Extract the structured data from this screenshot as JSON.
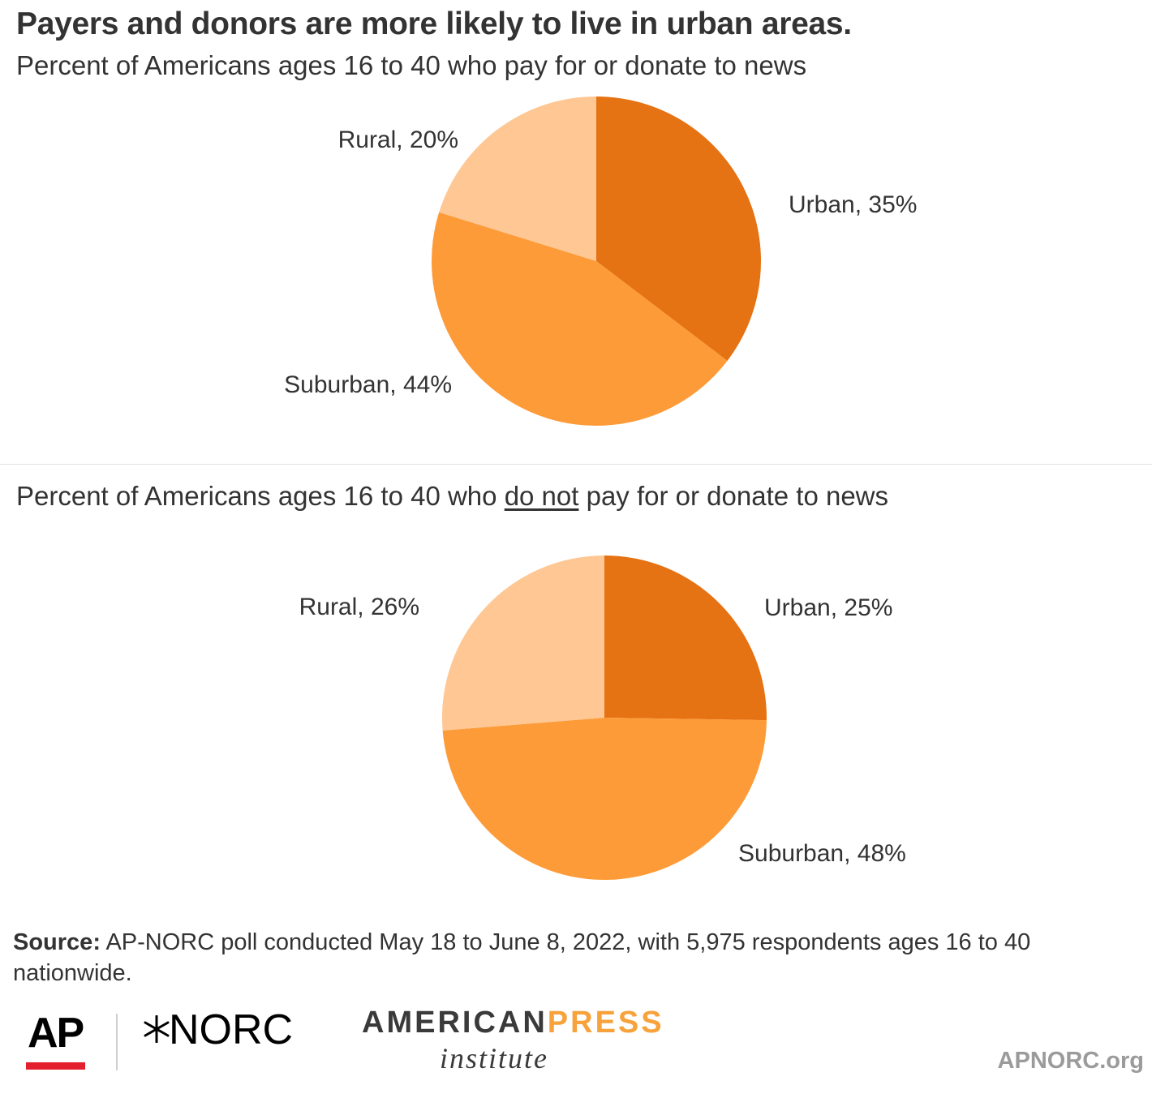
{
  "title": "Payers and donors are more likely to live in urban areas.",
  "chart_data": [
    {
      "type": "pie",
      "title": "Percent of Americans ages 16 to 40 who pay for or donate to news",
      "slices": [
        {
          "name": "Urban",
          "value": 35,
          "label": "Urban, 35%",
          "color": "#e57213"
        },
        {
          "name": "Suburban",
          "value": 44,
          "label": "Suburban, 44%",
          "color": "#fe9b39"
        },
        {
          "name": "Rural",
          "value": 20,
          "label": "Rural, 20%",
          "color": "#fec793"
        }
      ]
    },
    {
      "type": "pie",
      "title_parts": [
        "Percent of Americans ages 16 to 40 who ",
        "do not",
        " pay for or donate to news"
      ],
      "slices": [
        {
          "name": "Urban",
          "value": 25,
          "label": "Urban, 25%",
          "color": "#e57213"
        },
        {
          "name": "Suburban",
          "value": 48,
          "label": "Suburban, 48%",
          "color": "#fe9b39"
        },
        {
          "name": "Rural",
          "value": 26,
          "label": "Rural, 26%",
          "color": "#fec793"
        }
      ]
    }
  ],
  "source": {
    "label": "Source:",
    "text": " AP-NORC poll conducted May 18 to June 8, 2022, with 5,975 respondents ages 16 to 40 nationwide."
  },
  "logos": {
    "ap": "AP",
    "norc": "NORC",
    "api_top_a": "AMERICAN",
    "api_top_b": "PRESS",
    "api_bottom": "institute"
  },
  "site": "APNORC.org"
}
